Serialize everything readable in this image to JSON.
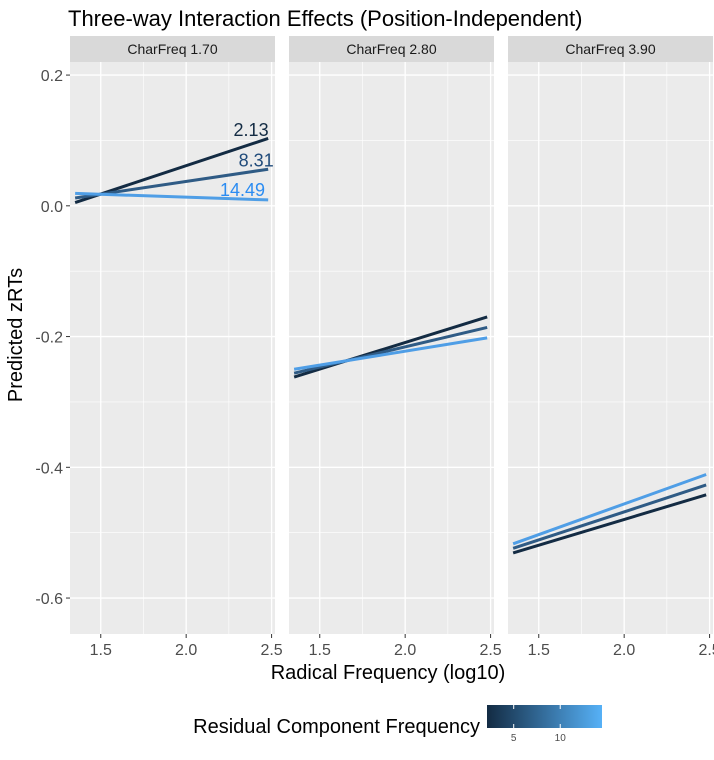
{
  "chart_data": {
    "type": "line",
    "title": "Three-way Interaction Effects (Position-Independent)",
    "xlabel": "Radical Frequency (log10)",
    "ylabel": "Predicted zRTs",
    "xlim": [
      1.32,
      2.52
    ],
    "ylim": [
      -0.655,
      0.22
    ],
    "x_ticks": [
      1.5,
      2.0,
      2.5
    ],
    "x_tick_labels": [
      "1.5",
      "2.0",
      "2.5"
    ],
    "y_ticks": [
      0.2,
      0.0,
      -0.2,
      -0.4,
      -0.6
    ],
    "y_tick_labels": [
      "0.2",
      "0.0",
      "-0.2",
      "-0.4",
      "-0.6"
    ],
    "grid": true,
    "legend": {
      "title": "Residual Component Frequency",
      "position": "bottom",
      "range": [
        2.13,
        14.49
      ],
      "ticks": [
        5,
        10
      ],
      "tick_labels": [
        "5",
        "10"
      ],
      "color_low": "#132B43",
      "color_high": "#56B1F7"
    },
    "panels": [
      {
        "strip": "CharFreq 1.70",
        "series": [
          {
            "name": "2.13",
            "color": "#132B43",
            "x": [
              1.35,
              2.48
            ],
            "y": [
              0.005,
              0.103
            ]
          },
          {
            "name": "8.31",
            "color": "#2F5B85",
            "x": [
              1.35,
              2.48
            ],
            "y": [
              0.012,
              0.056
            ]
          },
          {
            "name": "14.49",
            "color": "#4F9EE6",
            "x": [
              1.35,
              2.48
            ],
            "y": [
              0.019,
              0.009
            ]
          }
        ],
        "labels": [
          {
            "text": "2.13",
            "color": "#132B43",
            "x": 2.38,
            "y": 0.107
          },
          {
            "text": "8.31",
            "color": "#1F4A7A",
            "x": 2.41,
            "y": 0.06
          },
          {
            "text": "14.49",
            "color": "#2B8CF2",
            "x": 2.33,
            "y": 0.015
          }
        ]
      },
      {
        "strip": "CharFreq 2.80",
        "series": [
          {
            "name": "2.13",
            "color": "#132B43",
            "x": [
              1.35,
              2.48
            ],
            "y": [
              -0.262,
              -0.17
            ]
          },
          {
            "name": "8.31",
            "color": "#2F5B85",
            "x": [
              1.35,
              2.48
            ],
            "y": [
              -0.256,
              -0.186
            ]
          },
          {
            "name": "14.49",
            "color": "#4F9EE6",
            "x": [
              1.35,
              2.48
            ],
            "y": [
              -0.25,
              -0.202
            ]
          }
        ]
      },
      {
        "strip": "CharFreq 3.90",
        "series": [
          {
            "name": "2.13",
            "color": "#132B43",
            "x": [
              1.35,
              2.48
            ],
            "y": [
              -0.531,
              -0.442
            ]
          },
          {
            "name": "8.31",
            "color": "#2F5B85",
            "x": [
              1.35,
              2.48
            ],
            "y": [
              -0.524,
              -0.427
            ]
          },
          {
            "name": "14.49",
            "color": "#4F9EE6",
            "x": [
              1.35,
              2.48
            ],
            "y": [
              -0.517,
              -0.411
            ]
          }
        ]
      }
    ]
  }
}
